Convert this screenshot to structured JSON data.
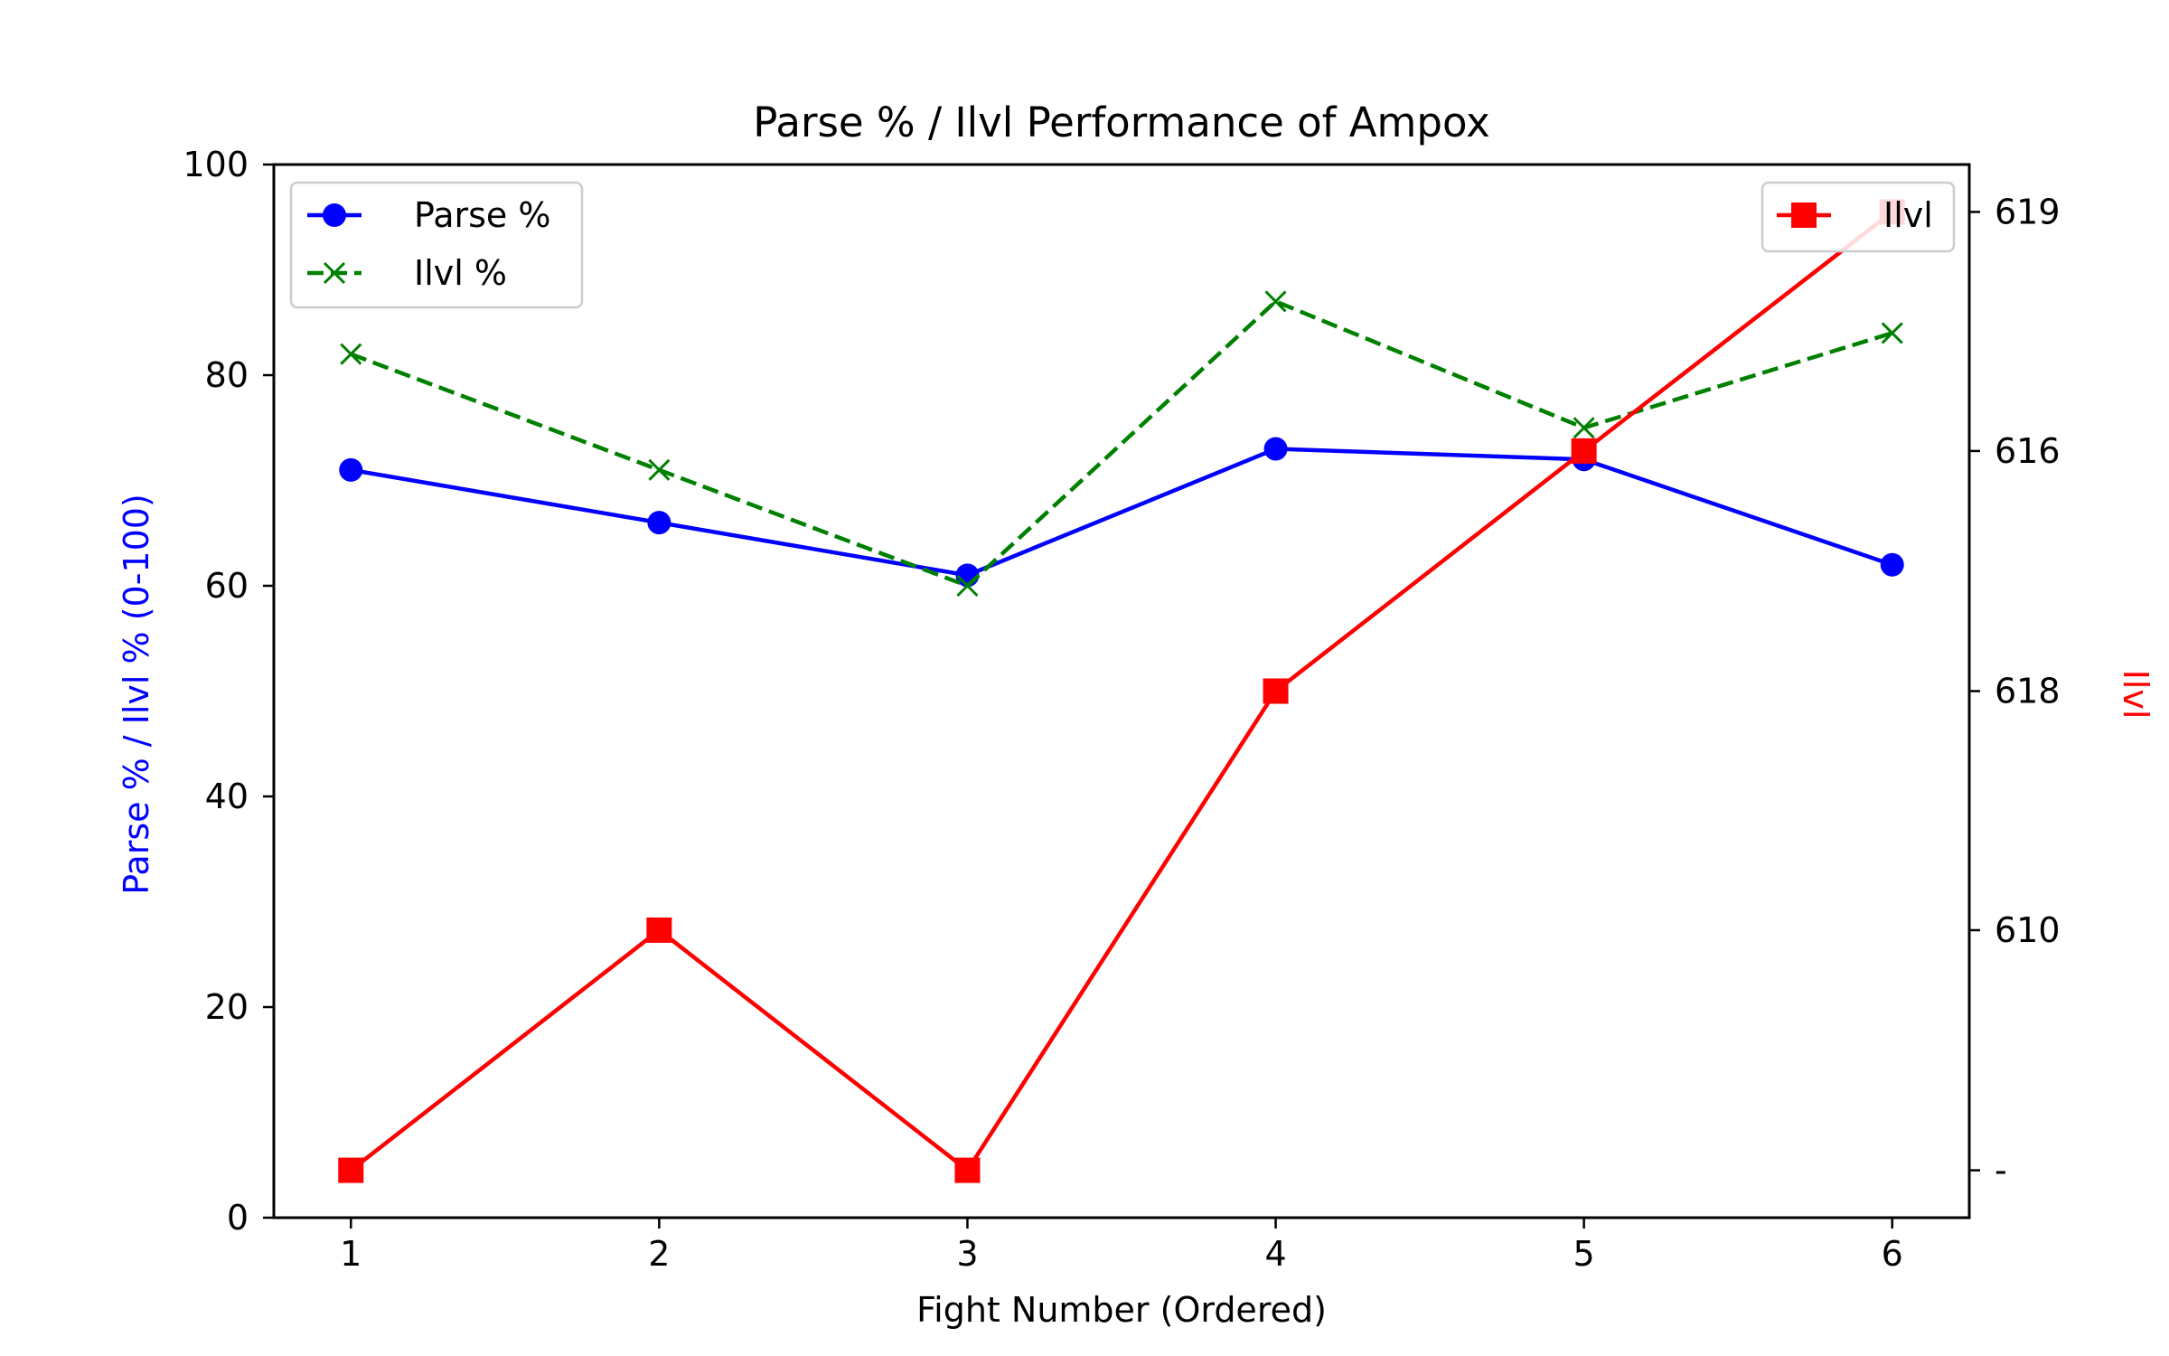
{
  "chart_data": {
    "type": "line",
    "title": "Parse % / Ilvl Performance of Ampox",
    "xlabel": "Fight Number (Ordered)",
    "ylabel": "Parse % / Ilvl % (0-100)",
    "ylabel_right": "Ilvl",
    "x": [
      1,
      2,
      3,
      4,
      5,
      6
    ],
    "ylim": [
      0,
      100
    ],
    "yticks": [
      0,
      20,
      40,
      60,
      80,
      100
    ],
    "grid": false,
    "series": [
      {
        "name": "Parse %",
        "axis": "left",
        "values": [
          71,
          66,
          61,
          73,
          72,
          62
        ],
        "color": "#0000ff",
        "style": "solid",
        "marker": "circle"
      },
      {
        "name": "Ilvl %",
        "axis": "left",
        "values": [
          82,
          71,
          60,
          87,
          75,
          84
        ],
        "color": "#008000",
        "style": "dashed",
        "marker": "x"
      }
    ],
    "right_axis": {
      "label": "Ilvl",
      "color": "#ff0000",
      "ticks": [
        {
          "label": "619",
          "level": 0.955
        },
        {
          "label": "616",
          "level": 0.728
        },
        {
          "label": "618",
          "level": 0.5
        },
        {
          "label": "610",
          "level": 0.273
        },
        {
          "label": "-",
          "level": 0.045
        }
      ]
    },
    "ilvl_series": {
      "name": "Ilvl",
      "color": "#ff0000",
      "marker": "square",
      "values": [
        "-",
        "610",
        "-",
        "618",
        "616",
        "619"
      ]
    },
    "legends": {
      "left": "top-left",
      "right": "top-right"
    }
  }
}
